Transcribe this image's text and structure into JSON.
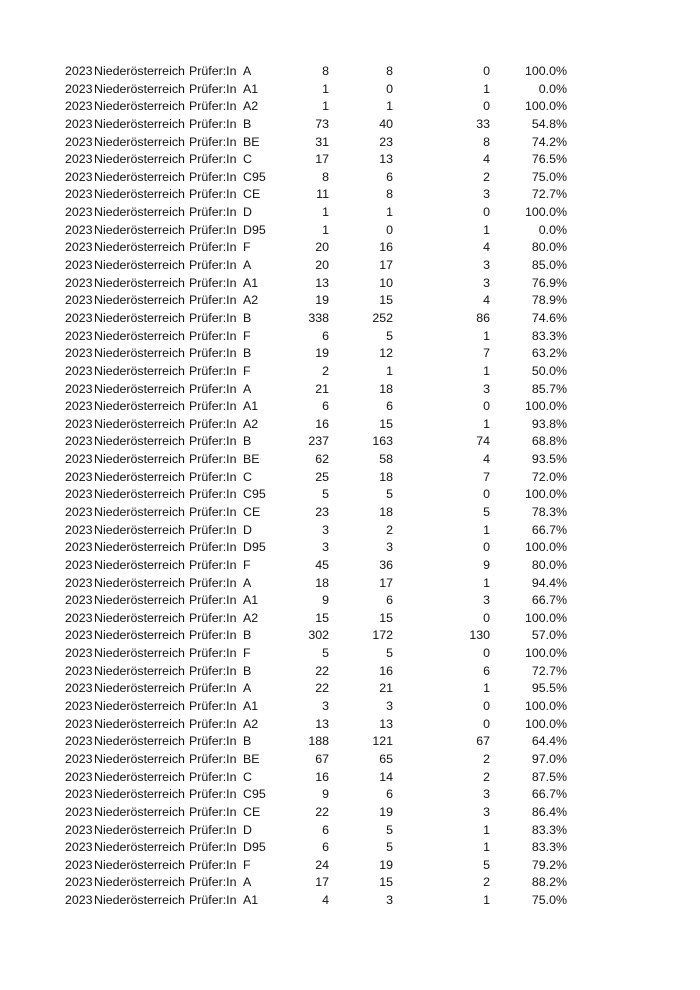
{
  "table": {
    "rows": [
      [
        "2023",
        "Niederösterreich",
        "Prüfer:In",
        "A",
        "8",
        "8",
        "0",
        "100.0%"
      ],
      [
        "2023",
        "Niederösterreich",
        "Prüfer:In",
        "A1",
        "1",
        "0",
        "1",
        "0.0%"
      ],
      [
        "2023",
        "Niederösterreich",
        "Prüfer:In",
        "A2",
        "1",
        "1",
        "0",
        "100.0%"
      ],
      [
        "2023",
        "Niederösterreich",
        "Prüfer:In",
        "B",
        "73",
        "40",
        "33",
        "54.8%"
      ],
      [
        "2023",
        "Niederösterreich",
        "Prüfer:In",
        "BE",
        "31",
        "23",
        "8",
        "74.2%"
      ],
      [
        "2023",
        "Niederösterreich",
        "Prüfer:In",
        "C",
        "17",
        "13",
        "4",
        "76.5%"
      ],
      [
        "2023",
        "Niederösterreich",
        "Prüfer:In",
        "C95",
        "8",
        "6",
        "2",
        "75.0%"
      ],
      [
        "2023",
        "Niederösterreich",
        "Prüfer:In",
        "CE",
        "11",
        "8",
        "3",
        "72.7%"
      ],
      [
        "2023",
        "Niederösterreich",
        "Prüfer:In",
        "D",
        "1",
        "1",
        "0",
        "100.0%"
      ],
      [
        "2023",
        "Niederösterreich",
        "Prüfer:In",
        "D95",
        "1",
        "0",
        "1",
        "0.0%"
      ],
      [
        "2023",
        "Niederösterreich",
        "Prüfer:In",
        "F",
        "20",
        "16",
        "4",
        "80.0%"
      ],
      [
        "2023",
        "Niederösterreich",
        "Prüfer:In",
        "A",
        "20",
        "17",
        "3",
        "85.0%"
      ],
      [
        "2023",
        "Niederösterreich",
        "Prüfer:In",
        "A1",
        "13",
        "10",
        "3",
        "76.9%"
      ],
      [
        "2023",
        "Niederösterreich",
        "Prüfer:In",
        "A2",
        "19",
        "15",
        "4",
        "78.9%"
      ],
      [
        "2023",
        "Niederösterreich",
        "Prüfer:In",
        "B",
        "338",
        "252",
        "86",
        "74.6%"
      ],
      [
        "2023",
        "Niederösterreich",
        "Prüfer:In",
        "F",
        "6",
        "5",
        "1",
        "83.3%"
      ],
      [
        "2023",
        "Niederösterreich",
        "Prüfer:In",
        "B",
        "19",
        "12",
        "7",
        "63.2%"
      ],
      [
        "2023",
        "Niederösterreich",
        "Prüfer:In",
        "F",
        "2",
        "1",
        "1",
        "50.0%"
      ],
      [
        "2023",
        "Niederösterreich",
        "Prüfer:In",
        "A",
        "21",
        "18",
        "3",
        "85.7%"
      ],
      [
        "2023",
        "Niederösterreich",
        "Prüfer:In",
        "A1",
        "6",
        "6",
        "0",
        "100.0%"
      ],
      [
        "2023",
        "Niederösterreich",
        "Prüfer:In",
        "A2",
        "16",
        "15",
        "1",
        "93.8%"
      ],
      [
        "2023",
        "Niederösterreich",
        "Prüfer:In",
        "B",
        "237",
        "163",
        "74",
        "68.8%"
      ],
      [
        "2023",
        "Niederösterreich",
        "Prüfer:In",
        "BE",
        "62",
        "58",
        "4",
        "93.5%"
      ],
      [
        "2023",
        "Niederösterreich",
        "Prüfer:In",
        "C",
        "25",
        "18",
        "7",
        "72.0%"
      ],
      [
        "2023",
        "Niederösterreich",
        "Prüfer:In",
        "C95",
        "5",
        "5",
        "0",
        "100.0%"
      ],
      [
        "2023",
        "Niederösterreich",
        "Prüfer:In",
        "CE",
        "23",
        "18",
        "5",
        "78.3%"
      ],
      [
        "2023",
        "Niederösterreich",
        "Prüfer:In",
        "D",
        "3",
        "2",
        "1",
        "66.7%"
      ],
      [
        "2023",
        "Niederösterreich",
        "Prüfer:In",
        "D95",
        "3",
        "3",
        "0",
        "100.0%"
      ],
      [
        "2023",
        "Niederösterreich",
        "Prüfer:In",
        "F",
        "45",
        "36",
        "9",
        "80.0%"
      ],
      [
        "2023",
        "Niederösterreich",
        "Prüfer:In",
        "A",
        "18",
        "17",
        "1",
        "94.4%"
      ],
      [
        "2023",
        "Niederösterreich",
        "Prüfer:In",
        "A1",
        "9",
        "6",
        "3",
        "66.7%"
      ],
      [
        "2023",
        "Niederösterreich",
        "Prüfer:In",
        "A2",
        "15",
        "15",
        "0",
        "100.0%"
      ],
      [
        "2023",
        "Niederösterreich",
        "Prüfer:In",
        "B",
        "302",
        "172",
        "130",
        "57.0%"
      ],
      [
        "2023",
        "Niederösterreich",
        "Prüfer:In",
        "F",
        "5",
        "5",
        "0",
        "100.0%"
      ],
      [
        "2023",
        "Niederösterreich",
        "Prüfer:In",
        "B",
        "22",
        "16",
        "6",
        "72.7%"
      ],
      [
        "2023",
        "Niederösterreich",
        "Prüfer:In",
        "A",
        "22",
        "21",
        "1",
        "95.5%"
      ],
      [
        "2023",
        "Niederösterreich",
        "Prüfer:In",
        "A1",
        "3",
        "3",
        "0",
        "100.0%"
      ],
      [
        "2023",
        "Niederösterreich",
        "Prüfer:In",
        "A2",
        "13",
        "13",
        "0",
        "100.0%"
      ],
      [
        "2023",
        "Niederösterreich",
        "Prüfer:In",
        "B",
        "188",
        "121",
        "67",
        "64.4%"
      ],
      [
        "2023",
        "Niederösterreich",
        "Prüfer:In",
        "BE",
        "67",
        "65",
        "2",
        "97.0%"
      ],
      [
        "2023",
        "Niederösterreich",
        "Prüfer:In",
        "C",
        "16",
        "14",
        "2",
        "87.5%"
      ],
      [
        "2023",
        "Niederösterreich",
        "Prüfer:In",
        "C95",
        "9",
        "6",
        "3",
        "66.7%"
      ],
      [
        "2023",
        "Niederösterreich",
        "Prüfer:In",
        "CE",
        "22",
        "19",
        "3",
        "86.4%"
      ],
      [
        "2023",
        "Niederösterreich",
        "Prüfer:In",
        "D",
        "6",
        "5",
        "1",
        "83.3%"
      ],
      [
        "2023",
        "Niederösterreich",
        "Prüfer:In",
        "D95",
        "6",
        "5",
        "1",
        "83.3%"
      ],
      [
        "2023",
        "Niederösterreich",
        "Prüfer:In",
        "F",
        "24",
        "19",
        "5",
        "79.2%"
      ],
      [
        "2023",
        "Niederösterreich",
        "Prüfer:In",
        "A",
        "17",
        "15",
        "2",
        "88.2%"
      ],
      [
        "2023",
        "Niederösterreich",
        "Prüfer:In",
        "A1",
        "4",
        "3",
        "1",
        "75.0%"
      ]
    ]
  }
}
